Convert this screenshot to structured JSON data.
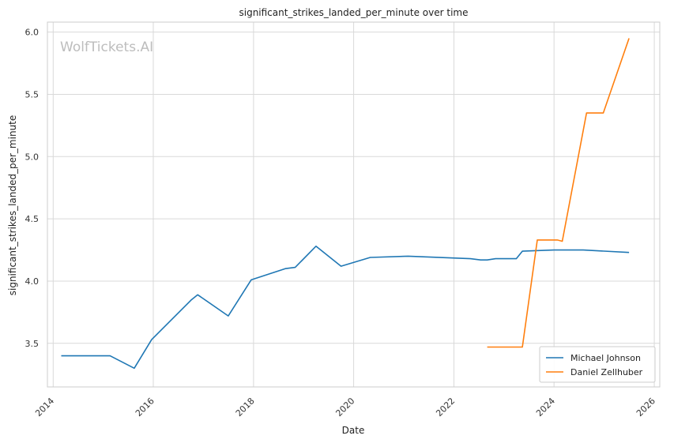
{
  "chart_data": {
    "type": "line",
    "title": "significant_strikes_landed_per_minute over time",
    "xlabel": "Date",
    "ylabel": "significant_strikes_landed_per_minute",
    "watermark": "WolfTickets.AI",
    "x_ticks": [
      "2014",
      "2016",
      "2018",
      "2020",
      "2022",
      "2024",
      "2026"
    ],
    "y_ticks": [
      "3.5",
      "4.0",
      "4.5",
      "5.0",
      "5.5",
      "6.0"
    ],
    "xlim": [
      "2013-11-20",
      "2026-02-10"
    ],
    "ylim": [
      3.15,
      6.08
    ],
    "grid": true,
    "legend_position": "lower-right",
    "series": [
      {
        "name": "Michael Johnson",
        "color": "#1f77b4",
        "points": [
          [
            "2014-03-01",
            3.4
          ],
          [
            "2015-02-20",
            3.4
          ],
          [
            "2015-08-15",
            3.3
          ],
          [
            "2015-12-20",
            3.53
          ],
          [
            "2016-10-05",
            3.85
          ],
          [
            "2016-11-20",
            3.89
          ],
          [
            "2017-07-01",
            3.72
          ],
          [
            "2017-12-15",
            4.01
          ],
          [
            "2018-08-20",
            4.1
          ],
          [
            "2018-11-01",
            4.11
          ],
          [
            "2019-04-01",
            4.28
          ],
          [
            "2019-10-01",
            4.12
          ],
          [
            "2020-05-01",
            4.19
          ],
          [
            "2021-02-01",
            4.2
          ],
          [
            "2022-05-01",
            4.18
          ],
          [
            "2022-07-15",
            4.17
          ],
          [
            "2022-09-01",
            4.17
          ],
          [
            "2022-11-01",
            4.18
          ],
          [
            "2023-04-01",
            4.18
          ],
          [
            "2023-05-15",
            4.24
          ],
          [
            "2024-01-01",
            4.25
          ],
          [
            "2024-08-01",
            4.25
          ],
          [
            "2025-07-01",
            4.23
          ]
        ]
      },
      {
        "name": "Daniel Zellhuber",
        "color": "#ff7f0e",
        "points": [
          [
            "2022-09-01",
            3.47
          ],
          [
            "2023-05-15",
            3.47
          ],
          [
            "2023-09-01",
            4.33
          ],
          [
            "2024-01-25",
            4.33
          ],
          [
            "2024-03-01",
            4.32
          ],
          [
            "2024-08-25",
            5.35
          ],
          [
            "2024-12-25",
            5.35
          ],
          [
            "2025-07-01",
            5.95
          ]
        ]
      }
    ]
  }
}
